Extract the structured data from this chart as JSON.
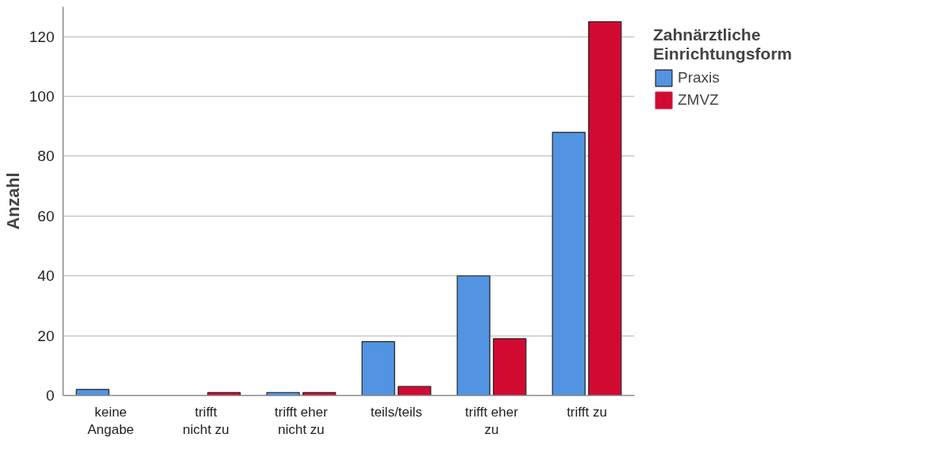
{
  "chart_data": {
    "type": "bar",
    "ylabel": "Anzahl",
    "legend_title": "Zahnärztliche\nEinrichtungsform",
    "categories": [
      "keine Angabe",
      "trifft nicht zu",
      "trifft eher nicht zu",
      "teils/teils",
      "trifft eher zu",
      "trifft zu"
    ],
    "series": [
      {
        "name": "Praxis",
        "color": "#5294e2",
        "values": [
          2,
          0,
          1,
          18,
          40,
          88
        ]
      },
      {
        "name": "ZMVZ",
        "color": "#d20a32",
        "values": [
          0,
          1,
          1,
          3,
          19,
          125
        ]
      }
    ],
    "ylim": [
      0,
      130
    ],
    "yticks": [
      0,
      20,
      40,
      60,
      80,
      100,
      120
    ],
    "grid": "y",
    "legend": "right"
  }
}
